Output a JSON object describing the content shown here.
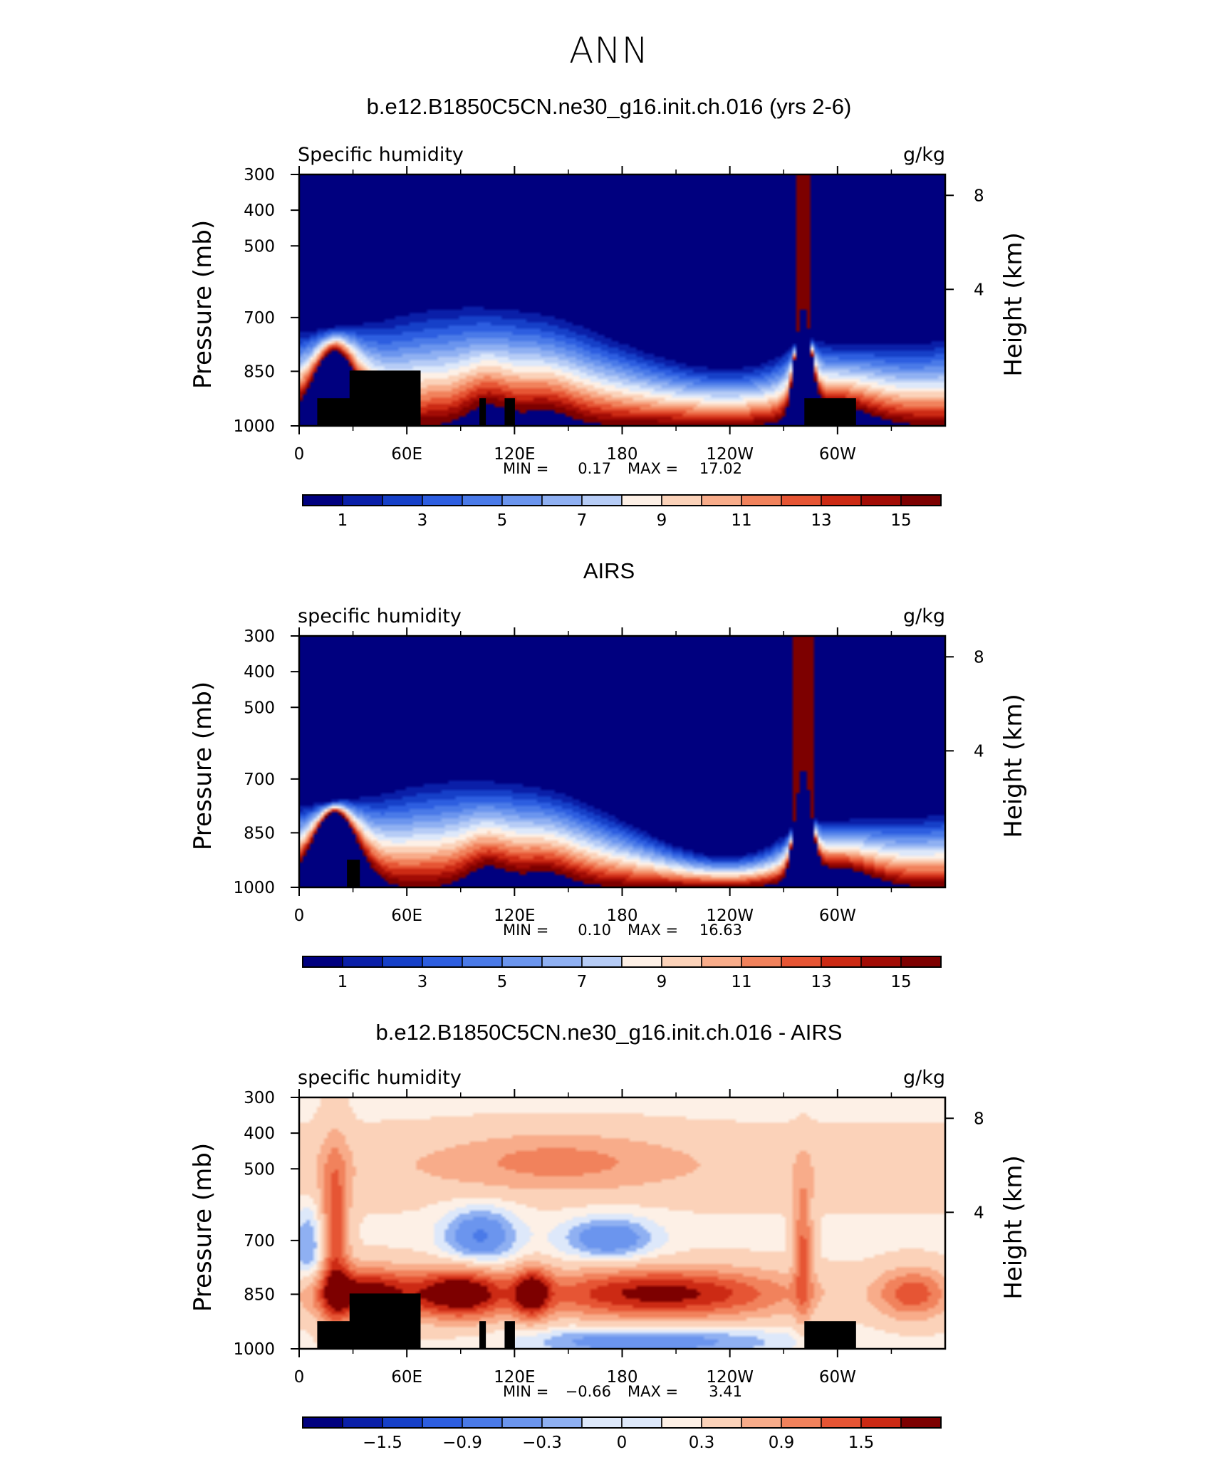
{
  "figure_title": "ANN",
  "chart_data": [
    {
      "type": "heatmap",
      "title": "b.e12.B1850C5CN.ne30_g16.init.ch.016 (yrs 2-6)",
      "left_label": "Specific humidity",
      "right_label": "g/kg",
      "ylabel": "Pressure (mb)",
      "y2label": "Height (km)",
      "x_ticks": [
        "0",
        "60E",
        "120E",
        "180",
        "120W",
        "60W"
      ],
      "y_ticks": [
        "300",
        "400",
        "500",
        "700",
        "850",
        "1000"
      ],
      "y2_ticks": [
        "8",
        "4"
      ],
      "stats": {
        "min_label": "MIN =",
        "min": "0.17",
        "max_label": "MAX =",
        "max": "17.02"
      },
      "colorbar_labels": [
        "1",
        "3",
        "5",
        "7",
        "9",
        "11",
        "13",
        "15"
      ],
      "ylim": [
        1000,
        300
      ],
      "xlim": [
        0,
        360
      ]
    },
    {
      "type": "heatmap",
      "title": "AIRS",
      "left_label": "specific humidity",
      "right_label": "g/kg",
      "ylabel": "Pressure (mb)",
      "y2label": "Height (km)",
      "x_ticks": [
        "0",
        "60E",
        "120E",
        "180",
        "120W",
        "60W"
      ],
      "y_ticks": [
        "300",
        "400",
        "500",
        "700",
        "850",
        "1000"
      ],
      "y2_ticks": [
        "8",
        "4"
      ],
      "stats": {
        "min_label": "MIN =",
        "min": "0.10",
        "max_label": "MAX =",
        "max": "16.63"
      },
      "colorbar_labels": [
        "1",
        "3",
        "5",
        "7",
        "9",
        "11",
        "13",
        "15"
      ],
      "ylim": [
        1000,
        300
      ],
      "xlim": [
        0,
        360
      ]
    },
    {
      "type": "heatmap",
      "title": "b.e12.B1850C5CN.ne30_g16.init.ch.016 - AIRS",
      "left_label": "specific humidity",
      "right_label": "g/kg",
      "ylabel": "Pressure (mb)",
      "y2label": "Height (km)",
      "x_ticks": [
        "0",
        "60E",
        "120E",
        "180",
        "120W",
        "60W"
      ],
      "y_ticks": [
        "300",
        "400",
        "500",
        "700",
        "850",
        "1000"
      ],
      "y2_ticks": [
        "8",
        "4"
      ],
      "stats": {
        "min_label": "MIN =",
        "min": "−0.66",
        "max_label": "MAX =",
        "max": "3.41"
      },
      "colorbar_labels": [
        "−1.5",
        "−0.9",
        "−0.3",
        "0",
        "0.3",
        "0.9",
        "1.5"
      ],
      "ylim": [
        1000,
        300
      ],
      "xlim": [
        0,
        360
      ]
    }
  ],
  "palette": [
    "#00007f",
    "#0a1fa8",
    "#1640c8",
    "#2d5ee0",
    "#4a7ae8",
    "#6b95ee",
    "#8fb0f2",
    "#b6ccf6",
    "#dde8fa",
    "#fdf0e6",
    "#fbd2b9",
    "#f8ac8a",
    "#f1825c",
    "#e65534",
    "#cc2a14",
    "#a20c05",
    "#7d0000"
  ]
}
